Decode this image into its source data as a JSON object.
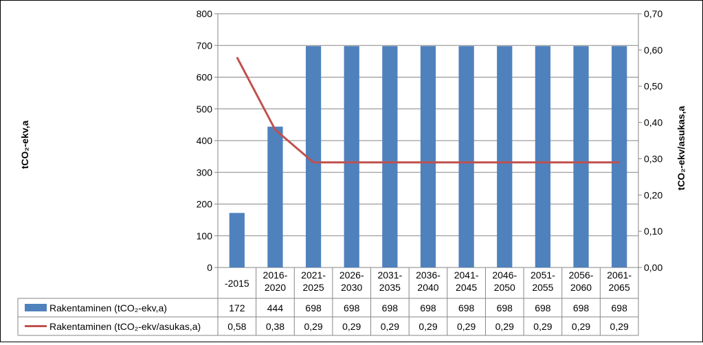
{
  "chart_data": {
    "type": "bar",
    "categories": [
      "-2015",
      "2016-2020",
      "2021-2025",
      "2026-2030",
      "2031-2035",
      "2036-2040",
      "2041-2045",
      "2046-2050",
      "2051-2055",
      "2056-2060",
      "2061-2065"
    ],
    "series": [
      {
        "name": "Rakentaminen (tCO₂-ekv,a)",
        "type": "bar",
        "axis": "left",
        "color": "#4F81BD",
        "values": [
          172,
          444,
          698,
          698,
          698,
          698,
          698,
          698,
          698,
          698,
          698
        ],
        "labels": [
          "172",
          "444",
          "698",
          "698",
          "698",
          "698",
          "698",
          "698",
          "698",
          "698",
          "698"
        ]
      },
      {
        "name": "Rakentaminen (tCO₂-ekv/asukas,a)",
        "type": "line",
        "axis": "right",
        "color": "#C0504D",
        "values": [
          0.58,
          0.38,
          0.29,
          0.29,
          0.29,
          0.29,
          0.29,
          0.29,
          0.29,
          0.29,
          0.29
        ],
        "labels": [
          "0,58",
          "0,38",
          "0,29",
          "0,29",
          "0,29",
          "0,29",
          "0,29",
          "0,29",
          "0,29",
          "0,29",
          "0,29"
        ]
      }
    ],
    "y_left": {
      "label": "tCO₂-ekv,a",
      "ylim": [
        0,
        800
      ],
      "ticks": [
        0,
        100,
        200,
        300,
        400,
        500,
        600,
        700,
        800
      ],
      "tick_labels": [
        "0",
        "100",
        "200",
        "300",
        "400",
        "500",
        "600",
        "700",
        "800"
      ]
    },
    "y_right": {
      "label": "tCO₂-ekv/asukas,a",
      "ylim": [
        0,
        0.7
      ],
      "ticks": [
        0,
        0.1,
        0.2,
        0.3,
        0.4,
        0.5,
        0.6,
        0.7
      ],
      "tick_labels": [
        "0,00",
        "0,10",
        "0,20",
        "0,30",
        "0,40",
        "0,50",
        "0,60",
        "0,70"
      ]
    },
    "grid": true,
    "legend": "data-table-below"
  }
}
